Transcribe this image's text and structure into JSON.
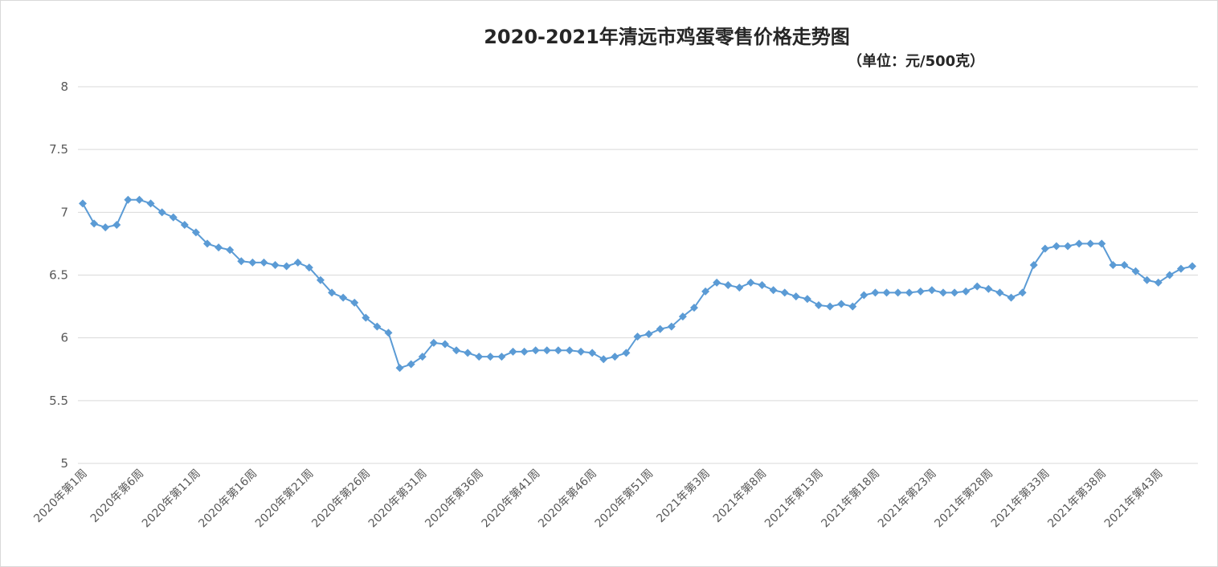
{
  "chart_data": {
    "type": "line",
    "title": "2020-2021年清远市鸡蛋零售价格走势图",
    "unit_label": "（单位：元/500克）",
    "xlabel": "",
    "ylabel": "",
    "ylim": [
      5,
      8
    ],
    "yticks": [
      "5",
      "5.5",
      "6",
      "6.5",
      "7",
      "7.5",
      "8"
    ],
    "grid": true,
    "legend": "none",
    "color": "#5b9bd5",
    "marker": "diamond",
    "tick_every": 5,
    "categories": [
      "2020年第1周",
      "2020年第2周",
      "2020年第3周",
      "2020年第4周",
      "2020年第5周",
      "2020年第6周",
      "2020年第7周",
      "2020年第8周",
      "2020年第9周",
      "2020年第10周",
      "2020年第11周",
      "2020年第12周",
      "2020年第13周",
      "2020年第14周",
      "2020年第15周",
      "2020年第16周",
      "2020年第17周",
      "2020年第18周",
      "2020年第19周",
      "2020年第20周",
      "2020年第21周",
      "2020年第22周",
      "2020年第23周",
      "2020年第24周",
      "2020年第25周",
      "2020年第26周",
      "2020年第27周",
      "2020年第28周",
      "2020年第29周",
      "2020年第30周",
      "2020年第31周",
      "2020年第32周",
      "2020年第33周",
      "2020年第34周",
      "2020年第35周",
      "2020年第36周",
      "2020年第37周",
      "2020年第38周",
      "2020年第39周",
      "2020年第40周",
      "2020年第41周",
      "2020年第42周",
      "2020年第43周",
      "2020年第44周",
      "2020年第45周",
      "2020年第46周",
      "2020年第47周",
      "2020年第48周",
      "2020年第49周",
      "2020年第50周",
      "2020年第51周",
      "2020年第52周",
      "2020年第53周",
      "2021年第1周",
      "2021年第2周",
      "2021年第3周",
      "2021年第4周",
      "2021年第5周",
      "2021年第6周",
      "2021年第7周",
      "2021年第8周",
      "2021年第9周",
      "2021年第10周",
      "2021年第11周",
      "2021年第12周",
      "2021年第13周",
      "2021年第14周",
      "2021年第15周",
      "2021年第16周",
      "2021年第17周",
      "2021年第18周",
      "2021年第19周",
      "2021年第20周",
      "2021年第21周",
      "2021年第22周",
      "2021年第23周",
      "2021年第24周",
      "2021年第25周",
      "2021年第26周",
      "2021年第27周",
      "2021年第28周",
      "2021年第29周",
      "2021年第30周",
      "2021年第31周",
      "2021年第32周",
      "2021年第33周",
      "2021年第34周",
      "2021年第35周",
      "2021年第36周",
      "2021年第37周",
      "2021年第38周",
      "2021年第39周",
      "2021年第40周",
      "2021年第41周",
      "2021年第42周",
      "2021年第43周",
      "2021年第44周",
      "2021年第45周",
      "2021年第46周"
    ],
    "values": [
      7.07,
      6.91,
      6.88,
      6.9,
      7.1,
      7.1,
      7.07,
      7.0,
      6.96,
      6.9,
      6.84,
      6.75,
      6.72,
      6.7,
      6.61,
      6.6,
      6.6,
      6.58,
      6.57,
      6.6,
      6.56,
      6.46,
      6.36,
      6.32,
      6.28,
      6.16,
      6.09,
      6.04,
      5.76,
      5.79,
      5.85,
      5.96,
      5.95,
      5.9,
      5.88,
      5.85,
      5.85,
      5.85,
      5.89,
      5.89,
      5.9,
      5.9,
      5.9,
      5.9,
      5.89,
      5.88,
      5.83,
      5.85,
      5.88,
      6.01,
      6.03,
      6.07,
      6.09,
      6.17,
      6.24,
      6.37,
      6.44,
      6.42,
      6.4,
      6.44,
      6.42,
      6.38,
      6.36,
      6.33,
      6.31,
      6.26,
      6.25,
      6.27,
      6.25,
      6.34,
      6.36,
      6.36,
      6.36,
      6.36,
      6.37,
      6.38,
      6.36,
      6.36,
      6.37,
      6.41,
      6.39,
      6.36,
      6.32,
      6.36,
      6.58,
      6.71,
      6.73,
      6.73,
      6.75,
      6.75,
      6.75,
      6.58,
      6.58,
      6.53,
      6.46,
      6.44,
      6.5,
      6.55,
      6.57
    ]
  }
}
